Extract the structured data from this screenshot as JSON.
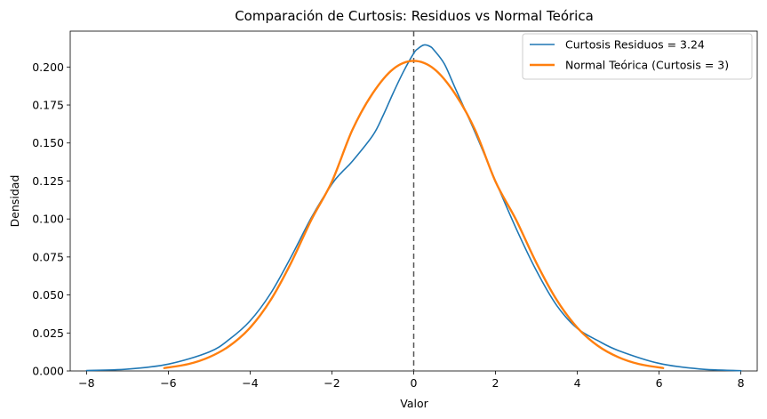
{
  "chart_data": {
    "type": "line",
    "title": "Comparación de Curtosis: Residuos vs Normal Teórica",
    "xlabel": "Valor",
    "ylabel": "Densidad",
    "xlim": [
      -8.4,
      8.4
    ],
    "ylim": [
      0,
      0.2236
    ],
    "xticks": [
      -8,
      -6,
      -4,
      -2,
      0,
      2,
      4,
      6,
      8
    ],
    "xtick_labels": [
      "−8",
      "−6",
      "−4",
      "−2",
      "0",
      "2",
      "4",
      "6",
      "8"
    ],
    "yticks": [
      0,
      0.025,
      0.05,
      0.075,
      0.1,
      0.125,
      0.15,
      0.175,
      0.2
    ],
    "ytick_labels": [
      "0.000",
      "0.025",
      "0.050",
      "0.075",
      "0.100",
      "0.125",
      "0.150",
      "0.175",
      "0.200"
    ],
    "vline": {
      "x": 0,
      "style": "dashed",
      "color": "#555555"
    },
    "legend_position": "top-right",
    "series": [
      {
        "name": "Curtosis Residuos = 3.24",
        "color": "#1f77b4",
        "x": [
          -8.0,
          -7.0,
          -6.0,
          -5.0,
          -4.5,
          -4.0,
          -3.5,
          -3.0,
          -2.5,
          -2.0,
          -1.75,
          -1.5,
          -1.0,
          -0.75,
          -0.5,
          -0.25,
          0.0,
          0.1,
          0.25,
          0.4,
          0.5,
          0.75,
          1.0,
          1.5,
          2.0,
          2.5,
          3.0,
          3.5,
          4.0,
          4.5,
          5.0,
          6.0,
          7.0,
          8.0
        ],
        "y": [
          0.0003,
          0.0012,
          0.0045,
          0.0125,
          0.021,
          0.033,
          0.051,
          0.075,
          0.101,
          0.123,
          0.131,
          0.138,
          0.155,
          0.168,
          0.183,
          0.197,
          0.209,
          0.212,
          0.2145,
          0.2135,
          0.211,
          0.202,
          0.187,
          0.157,
          0.125,
          0.094,
          0.066,
          0.043,
          0.028,
          0.02,
          0.0135,
          0.005,
          0.0013,
          0.0002
        ]
      },
      {
        "name": "Normal Teórica (Curtosis = 3)",
        "color": "#ff7f0e",
        "x": [
          -6.1,
          -5.5,
          -5.0,
          -4.5,
          -4.0,
          -3.5,
          -3.0,
          -2.5,
          -2.0,
          -1.5,
          -1.0,
          -0.5,
          0.0,
          0.5,
          1.0,
          1.5,
          2.0,
          2.5,
          3.0,
          3.5,
          4.0,
          4.5,
          5.0,
          5.5,
          6.1
        ],
        "y": [
          0.0019,
          0.0046,
          0.0091,
          0.0166,
          0.0285,
          0.0466,
          0.0711,
          0.0996,
          0.1246,
          0.1586,
          0.1828,
          0.1987,
          0.204,
          0.1987,
          0.1828,
          0.1586,
          0.1246,
          0.0996,
          0.0711,
          0.0466,
          0.0285,
          0.0166,
          0.0091,
          0.0046,
          0.0019
        ]
      }
    ]
  }
}
